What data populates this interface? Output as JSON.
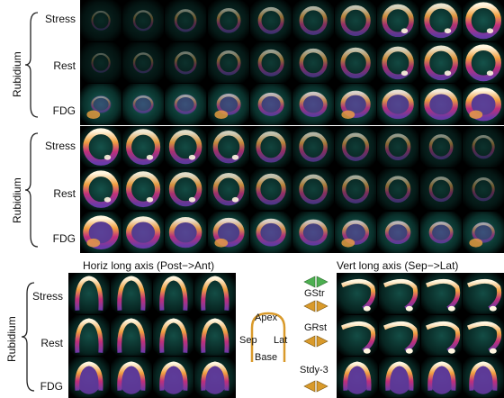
{
  "top_section": {
    "group_label": "Rubidium",
    "rows": [
      {
        "label": "Stress",
        "kind": "rb"
      },
      {
        "label": "Rest",
        "kind": "rb"
      },
      {
        "label": "FDG",
        "kind": "fdg"
      }
    ]
  },
  "mid_section": {
    "group_label": "Rubidium",
    "rows": [
      {
        "label": "Stress",
        "kind": "rb"
      },
      {
        "label": "Rest",
        "kind": "rb"
      },
      {
        "label": "FDG",
        "kind": "fdg"
      }
    ]
  },
  "bottom_left": {
    "title": "Horiz long axis (Post−>Ant)",
    "group_label": "Rubidium",
    "rows": [
      {
        "label": "Stress"
      },
      {
        "label": "Rest"
      },
      {
        "label": "FDG"
      }
    ]
  },
  "bottom_right": {
    "title": "Vert long axis (Sep−>Lat)"
  },
  "center_legend": {
    "gstr_label": "GStr",
    "grst_label": "GRst",
    "stdy_label": "Stdy-3",
    "apex_label": "Apex",
    "sep_label": "Sep",
    "lat_label": "Lat",
    "base_label": "Base",
    "green_color": "#4caf50",
    "orange_color": "#d99a2b"
  },
  "colors": {
    "background": "#ffffff",
    "tile_bg": "#000000",
    "scan_teal": "#1f7a6e",
    "scan_purple": "#6b3aa8",
    "scan_magenta": "#c0307a",
    "scan_orange": "#f0a040",
    "scan_white": "#fff6e0"
  }
}
